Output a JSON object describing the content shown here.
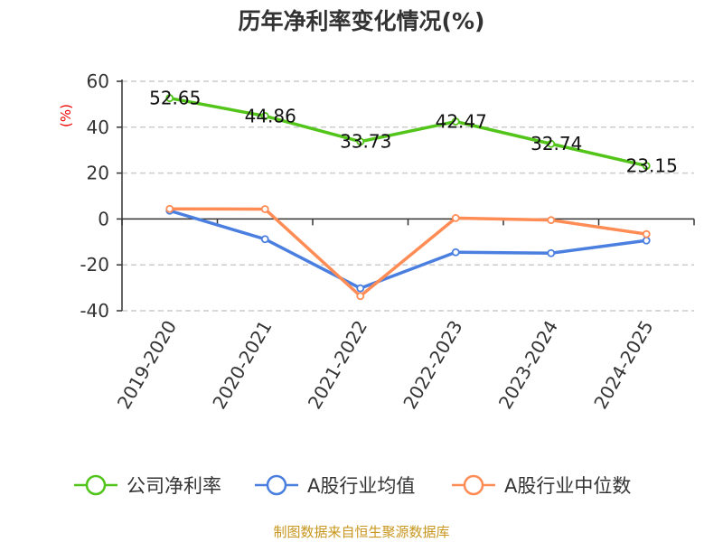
{
  "chart_data": {
    "type": "line",
    "title": "历年净利率变化情况(%)",
    "ylabel": "(%)",
    "xlabel": "",
    "categories": [
      "2019-2020",
      "2020-2021",
      "2021-2022",
      "2022-2023",
      "2023-2024",
      "2024-2025"
    ],
    "ylim": [
      -40,
      60
    ],
    "yticks": [
      60,
      40,
      20,
      0,
      -20,
      -40
    ],
    "grid": "horizontal dashed",
    "legend_position": "bottom",
    "series": [
      {
        "name": "公司净利率",
        "color": "#52c41a",
        "values": [
          52.65,
          44.86,
          33.73,
          42.47,
          32.74,
          23.15
        ],
        "show_labels": true
      },
      {
        "name": "A股行业均值",
        "color": "#4a7fe0",
        "values": [
          3.6,
          -8.8,
          -30.2,
          -14.5,
          -14.9,
          -9.4
        ],
        "show_labels": false
      },
      {
        "name": "A股行业中位数",
        "color": "#ff8c55",
        "values": [
          4.4,
          4.3,
          -33.6,
          0.4,
          -0.5,
          -6.6
        ],
        "show_labels": false
      }
    ]
  },
  "source": "制图数据来自恒生聚源数据库"
}
